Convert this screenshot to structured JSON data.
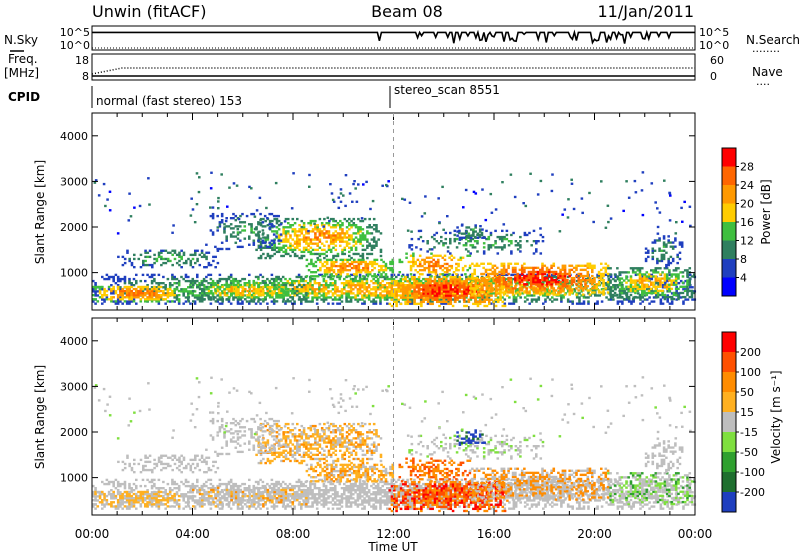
{
  "header": {
    "station": "Unwin (fitACF)",
    "beam": "Beam 08",
    "date": "11/Jan/2011"
  },
  "top_panels": {
    "nsky_label": "N.Sky",
    "nsearch_label": "N.Search",
    "nsearch_line": "........",
    "count_ticks": [
      "10^5",
      "10^0"
    ],
    "freq_label": "Freq.",
    "freq_unit": "[MHz]",
    "freq_ticks": [
      "18",
      "8"
    ],
    "nave_label": "Nave",
    "nave_line": "....",
    "nave_ticks": [
      "60",
      "0"
    ],
    "cpid_label": "CPID",
    "cpid_modes": [
      "normal (fast stereo) 153",
      "stereo_scan 8551"
    ]
  },
  "colors": {
    "power_scale": [
      "#0000ff",
      "#1f3fbf",
      "#2f7f5f",
      "#3fbf3f",
      "#ffcc00",
      "#ff9900",
      "#ff6600",
      "#ff0000"
    ],
    "velocity_scale": [
      "#1f3fbf",
      "#1f6f2f",
      "#2fa02f",
      "#7fdf3f",
      "#bebebe",
      "#ffb020",
      "#ff8c00",
      "#ff5000",
      "#ff0000"
    ]
  },
  "chart_data": [
    {
      "type": "heatmap",
      "panel": "power",
      "ylabel": "Slant Range [km]",
      "xlabel": "Time UT",
      "x_ticks": [
        "00:00",
        "04:00",
        "08:00",
        "12:00",
        "16:00",
        "20:00",
        "00:00"
      ],
      "y_ticks": [
        "1000",
        "2000",
        "3000",
        "4000"
      ],
      "xlim": [
        0,
        24
      ],
      "ylim": [
        180,
        4500
      ],
      "colorbar_label": "Power [dB]",
      "colorbar_ticks": [
        "28",
        "24",
        "20",
        "16",
        "12",
        "8",
        "4"
      ],
      "levels": [
        4,
        8,
        12,
        16,
        20,
        24,
        28
      ]
    },
    {
      "type": "heatmap",
      "panel": "velocity",
      "ylabel": "Slant Range [km]",
      "xlabel": "Time UT",
      "x_ticks": [
        "00:00",
        "04:00",
        "08:00",
        "12:00",
        "16:00",
        "20:00",
        "00:00"
      ],
      "y_ticks": [
        "1000",
        "2000",
        "3000",
        "4000"
      ],
      "xlim": [
        0,
        24
      ],
      "ylim": [
        180,
        4500
      ],
      "colorbar_label": "Velocity [m s⁻¹]",
      "colorbar_ticks": [
        "200",
        "100",
        "50",
        "15",
        "-15",
        "-50",
        "-100",
        "-200"
      ],
      "levels": [
        -200,
        -100,
        -50,
        -15,
        15,
        50,
        100,
        200
      ]
    }
  ]
}
